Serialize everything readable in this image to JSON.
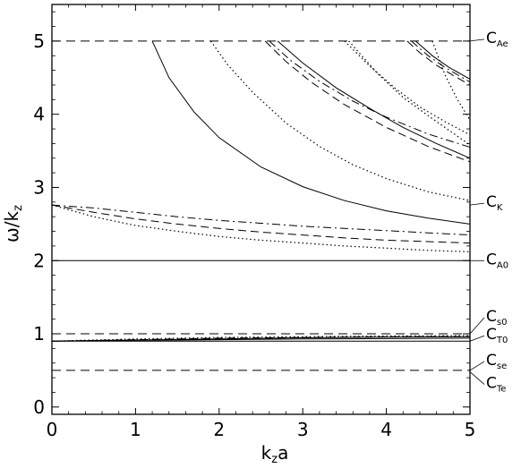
{
  "chart_data": {
    "type": "line",
    "xlabel": "k",
    "xlabel_sub": "z",
    "xlabel_tail": "a",
    "ylabel": "ω/k",
    "ylabel_sub": "z",
    "xlim": [
      0,
      5
    ],
    "ylim": [
      -0.1,
      5.5
    ],
    "xticks": [
      "0",
      "1",
      "2",
      "3",
      "4",
      "5"
    ],
    "yticks": [
      "0",
      "1",
      "2",
      "3",
      "4",
      "5"
    ],
    "xtick_values": [
      0,
      1,
      2,
      3,
      4,
      5
    ],
    "ytick_values": [
      0,
      1,
      2,
      3,
      4,
      5
    ],
    "grid": false,
    "legend": "none",
    "reference_lines": [
      {
        "label": "C",
        "sub": "Ae",
        "y": 5.0,
        "style": "dashed"
      },
      {
        "label": "C",
        "sub": "K",
        "y": 2.76,
        "style": "none"
      },
      {
        "label": "C",
        "sub": "A0",
        "y": 2.0,
        "style": "solid"
      },
      {
        "label": "C",
        "sub": "s0",
        "y": 1.0,
        "style": "dashed"
      },
      {
        "label": "C",
        "sub": "T0",
        "y": 0.9,
        "style": "solid"
      },
      {
        "label": "C",
        "sub": "se",
        "y": 0.5,
        "style": "dashed"
      },
      {
        "label": "C",
        "sub": "Te",
        "y": 0.48,
        "style": "none"
      }
    ],
    "series": [
      {
        "style": "solid",
        "x": [
          1.2,
          1.4,
          1.7,
          2.0,
          2.5,
          3.0,
          3.5,
          4.0,
          4.5,
          5.0
        ],
        "y": [
          5.0,
          4.5,
          4.03,
          3.68,
          3.28,
          3.01,
          2.82,
          2.68,
          2.58,
          2.5
        ]
      },
      {
        "style": "dotted",
        "x": [
          1.9,
          2.1,
          2.4,
          2.8,
          3.2,
          3.6,
          4.0,
          4.5,
          5.0
        ],
        "y": [
          5.0,
          4.68,
          4.3,
          3.88,
          3.56,
          3.31,
          3.12,
          2.94,
          2.82
        ]
      },
      {
        "style": "dashed",
        "x": [
          2.55,
          2.8,
          3.1,
          3.5,
          4.0,
          4.5,
          5.0
        ],
        "y": [
          5.0,
          4.72,
          4.44,
          4.13,
          3.82,
          3.56,
          3.35
        ]
      },
      {
        "style": "dashdot",
        "x": [
          2.6,
          2.85,
          3.2,
          3.6,
          4.0,
          4.5,
          5.0
        ],
        "y": [
          5.0,
          4.74,
          4.45,
          4.18,
          3.96,
          3.73,
          3.55
        ]
      },
      {
        "style": "solid",
        "x": [
          2.7,
          3.0,
          3.4,
          3.8,
          4.2,
          4.6,
          5.0
        ],
        "y": [
          5.0,
          4.7,
          4.36,
          4.08,
          3.82,
          3.6,
          3.4
        ]
      },
      {
        "style": "dotted",
        "x": [
          3.5,
          3.8,
          4.1,
          4.4,
          4.7,
          5.0
        ],
        "y": [
          5.0,
          4.66,
          4.36,
          4.1,
          3.9,
          3.72
        ]
      },
      {
        "style": "dotted",
        "x": [
          3.55,
          3.9,
          4.2,
          4.5,
          4.8,
          5.0
        ],
        "y": [
          5.0,
          4.55,
          4.23,
          3.98,
          3.74,
          3.58
        ]
      },
      {
        "style": "dashed",
        "x": [
          4.25,
          4.4,
          4.6,
          4.8,
          5.0
        ],
        "y": [
          5.0,
          4.84,
          4.67,
          4.53,
          4.4
        ]
      },
      {
        "style": "dashdot",
        "x": [
          4.3,
          4.5,
          4.7,
          4.85,
          5.0
        ],
        "y": [
          5.0,
          4.8,
          4.64,
          4.54,
          4.44
        ]
      },
      {
        "style": "solid",
        "x": [
          4.35,
          4.55,
          4.75,
          5.0
        ],
        "y": [
          5.0,
          4.8,
          4.64,
          4.48
        ]
      },
      {
        "style": "dotted",
        "x": [
          4.55,
          4.7,
          4.85,
          5.0
        ],
        "y": [
          5.0,
          4.54,
          4.2,
          3.92
        ]
      },
      {
        "style": "dashdot",
        "x": [
          0.0,
          0.5,
          1.0,
          1.5,
          2.0,
          2.5,
          3.0,
          3.5,
          4.0,
          4.5,
          5.0
        ],
        "y": [
          2.76,
          2.72,
          2.66,
          2.6,
          2.55,
          2.51,
          2.47,
          2.44,
          2.41,
          2.38,
          2.35
        ]
      },
      {
        "style": "dashed",
        "x": [
          0.0,
          0.5,
          1.0,
          1.5,
          2.0,
          2.5,
          3.0,
          3.5,
          4.0,
          4.5,
          5.0
        ],
        "y": [
          2.76,
          2.66,
          2.57,
          2.5,
          2.44,
          2.39,
          2.35,
          2.31,
          2.28,
          2.26,
          2.24
        ]
      },
      {
        "style": "dotted",
        "x": [
          0.0,
          0.5,
          1.0,
          1.5,
          2.0,
          2.5,
          3.0,
          3.5,
          4.0,
          4.5,
          5.0
        ],
        "y": [
          2.76,
          2.6,
          2.48,
          2.4,
          2.33,
          2.28,
          2.24,
          2.2,
          2.17,
          2.14,
          2.12
        ]
      },
      {
        "style": "solid",
        "x": [
          0.0,
          1.0,
          2.0,
          3.0,
          4.0,
          5.0
        ],
        "y": [
          0.9,
          0.91,
          0.92,
          0.93,
          0.935,
          0.94
        ]
      },
      {
        "style": "solid",
        "x": [
          0.0,
          1.0,
          2.0,
          3.0,
          4.0,
          5.0
        ],
        "y": [
          0.9,
          0.915,
          0.93,
          0.945,
          0.955,
          0.96
        ]
      },
      {
        "style": "dotted",
        "x": [
          0.0,
          1.0,
          2.0,
          3.0,
          4.0,
          5.0
        ],
        "y": [
          0.9,
          0.93,
          0.95,
          0.96,
          0.97,
          0.975
        ]
      },
      {
        "style": "dashed",
        "x": [
          0.0,
          1.0,
          2.0,
          3.0,
          4.0,
          5.0
        ],
        "y": [
          0.9,
          0.92,
          0.94,
          0.95,
          0.96,
          0.965
        ]
      }
    ]
  }
}
